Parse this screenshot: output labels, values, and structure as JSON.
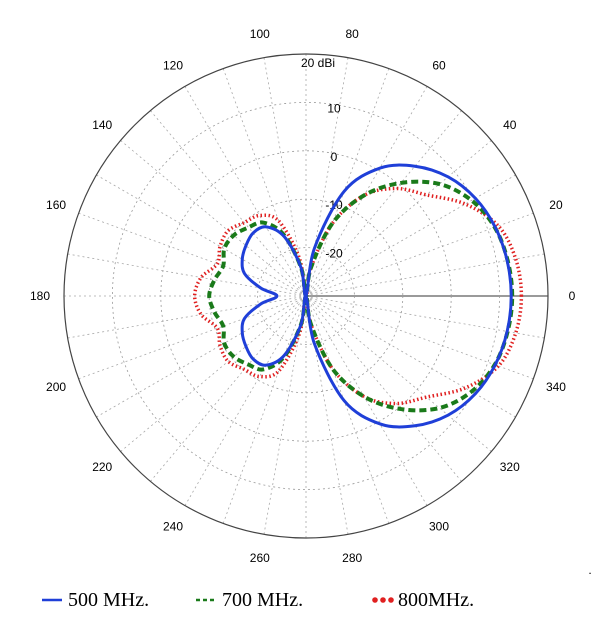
{
  "chart_data": {
    "type": "polar",
    "title": "",
    "radial_unit_label": "20 dBi",
    "radial_ticks": [
      "10",
      "0",
      "-10",
      "-20"
    ],
    "radial_range_dbi": [
      -30,
      20
    ],
    "angle_ticks": [
      "0",
      "20",
      "40",
      "60",
      "80",
      "100",
      "120",
      "140",
      "160",
      "180",
      "200",
      "220",
      "240",
      "260",
      "280",
      "300",
      "320",
      "340"
    ],
    "angle_tick_values": [
      0,
      20,
      40,
      60,
      80,
      100,
      120,
      140,
      160,
      180,
      200,
      220,
      240,
      260,
      280,
      300,
      320,
      340
    ],
    "grid": true,
    "legend_position": "bottom",
    "series": [
      {
        "name": "500 MHz.",
        "color": "#1f3fd8",
        "style": "solid",
        "angles": [
          0,
          10,
          20,
          30,
          40,
          50,
          60,
          70,
          80,
          90,
          100,
          110,
          120,
          130,
          140,
          150,
          160,
          170,
          180,
          190,
          200,
          210,
          220,
          230,
          240,
          250,
          260,
          270,
          280,
          290,
          300,
          310,
          320,
          330,
          340,
          350
        ],
        "values_dbi": [
          12.4,
          12.2,
          11.6,
          10.4,
          8.3,
          5.0,
          0.5,
          -7.0,
          -20.0,
          -30.0,
          -24.0,
          -17.0,
          -13.5,
          -13.0,
          -13.8,
          -14.8,
          -16.5,
          -20.5,
          -24.0,
          -20.5,
          -16.5,
          -14.8,
          -13.8,
          -13.0,
          -13.5,
          -17.0,
          -24.0,
          -30.0,
          -20.0,
          -7.0,
          0.5,
          5.0,
          8.3,
          10.4,
          11.6,
          12.2
        ]
      },
      {
        "name": "700 MHz.",
        "color": "#1a7a1a",
        "style": "dashed",
        "angles": [
          0,
          10,
          20,
          30,
          40,
          50,
          60,
          70,
          80,
          90,
          100,
          110,
          120,
          130,
          140,
          150,
          160,
          170,
          180,
          190,
          200,
          210,
          220,
          230,
          240,
          250,
          260,
          270,
          280,
          290,
          300,
          310,
          320,
          330,
          340,
          350
        ],
        "values_dbi": [
          12.6,
          12.3,
          11.5,
          9.5,
          6.0,
          0.5,
          -6.0,
          -14.0,
          -24.0,
          -30.0,
          -24.0,
          -16.5,
          -12.5,
          -11.5,
          -10.5,
          -10.5,
          -11.8,
          -10.8,
          -10.0,
          -10.8,
          -11.8,
          -10.5,
          -10.5,
          -11.5,
          -12.5,
          -16.5,
          -24.0,
          -30.0,
          -24.0,
          -14.0,
          -6.0,
          0.5,
          6.0,
          9.5,
          11.5,
          12.3
        ]
      },
      {
        "name": "800MHz.",
        "color": "#e02020",
        "style": "dotted",
        "angles": [
          0,
          10,
          20,
          30,
          40,
          50,
          60,
          70,
          80,
          90,
          100,
          110,
          120,
          130,
          140,
          150,
          160,
          170,
          180,
          190,
          200,
          210,
          220,
          230,
          240,
          250,
          260,
          270,
          280,
          290,
          300,
          310,
          320,
          330,
          340,
          350
        ],
        "values_dbi": [
          14.5,
          14.0,
          12.3,
          8.0,
          2.5,
          -1.0,
          -6.0,
          -14.0,
          -24.0,
          -30.0,
          -22.0,
          -13.5,
          -10.8,
          -10.2,
          -9.0,
          -9.5,
          -10.5,
          -8.0,
          -7.0,
          -8.0,
          -10.5,
          -9.5,
          -9.0,
          -10.2,
          -10.8,
          -13.5,
          -22.0,
          -30.0,
          -24.0,
          -14.0,
          -6.0,
          -1.0,
          2.5,
          8.0,
          12.3,
          14.0
        ]
      }
    ]
  },
  "footer": {
    "stray_mark": "."
  }
}
